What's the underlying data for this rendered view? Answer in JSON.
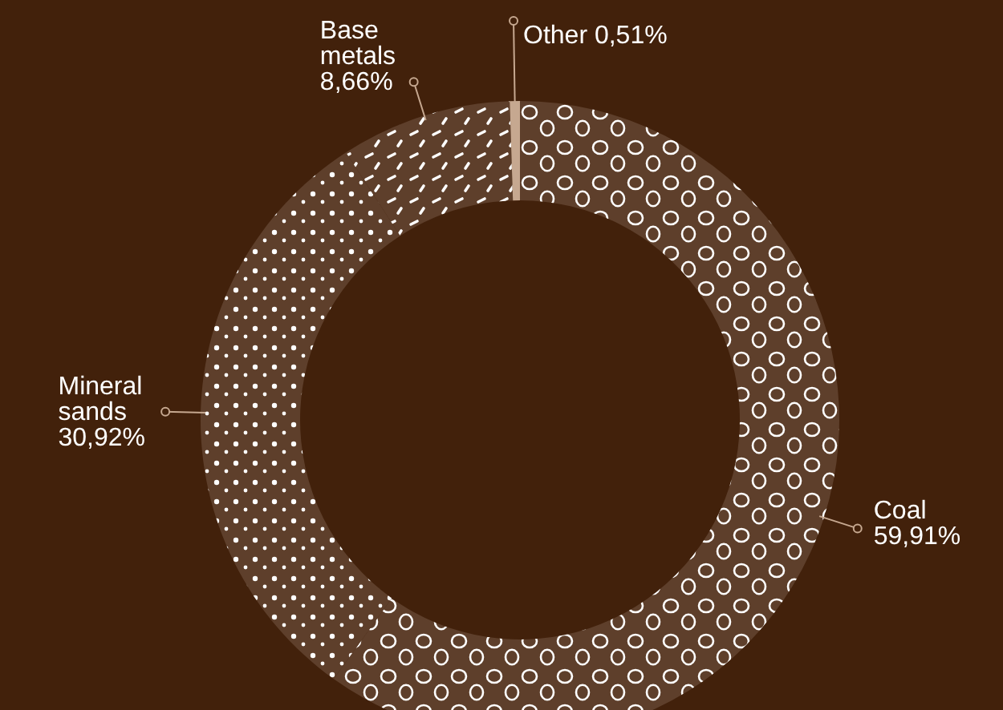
{
  "chart_data": {
    "type": "donut",
    "categories": [
      "Coal",
      "Mineral sands",
      "Base metals",
      "Other"
    ],
    "values": [
      59.91,
      30.92,
      8.66,
      0.51
    ],
    "value_labels": [
      "59,91%",
      "30,92%",
      "8,66%",
      "0,51%"
    ],
    "colors": [
      "#5e3f2b",
      "#5e3f2b",
      "#5e3f2b",
      "#c6a890"
    ]
  }
}
